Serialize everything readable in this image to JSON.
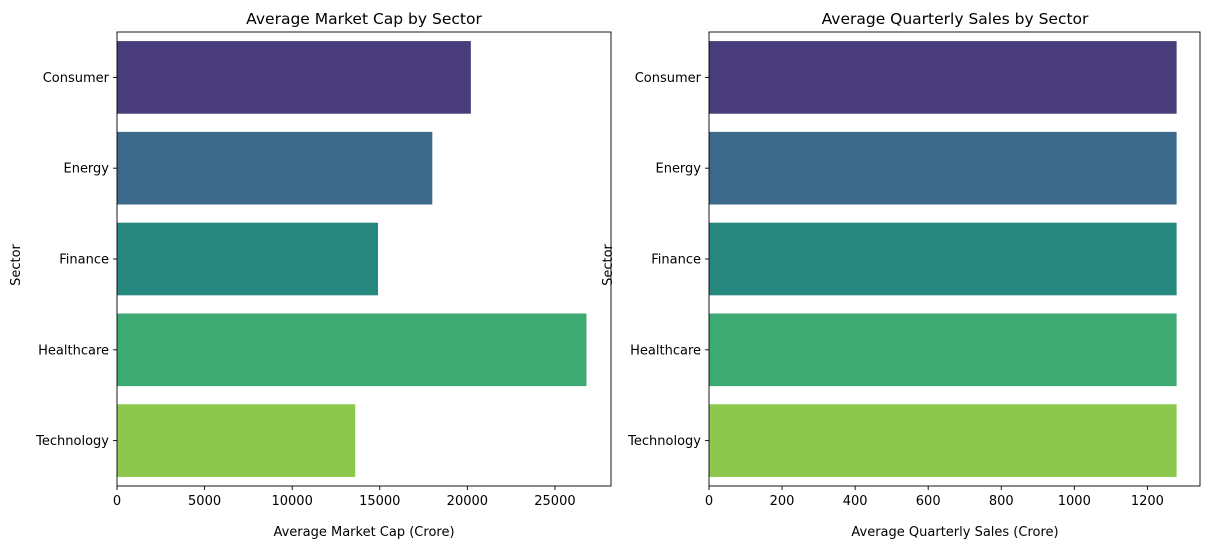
{
  "chart_data": [
    {
      "type": "bar",
      "orientation": "horizontal",
      "title": "Average Market Cap by Sector",
      "xlabel": "Average Market Cap (Crore)",
      "ylabel": "Sector",
      "categories": [
        "Consumer",
        "Energy",
        "Finance",
        "Healthcare",
        "Technology"
      ],
      "values": [
        20200,
        18000,
        14900,
        26800,
        13600
      ],
      "xlim": [
        0,
        28200
      ],
      "xticks": [
        0,
        5000,
        10000,
        15000,
        20000,
        25000
      ],
      "grid": false,
      "colors": [
        "#483d7a",
        "#3b6a8a",
        "#26877f",
        "#3eaa73",
        "#8bc84d"
      ]
    },
    {
      "type": "bar",
      "orientation": "horizontal",
      "title": "Average Quarterly Sales by Sector",
      "xlabel": "Average Quarterly Sales (Crore)",
      "ylabel": "Sector",
      "categories": [
        "Consumer",
        "Energy",
        "Finance",
        "Healthcare",
        "Technology"
      ],
      "values": [
        1280,
        1280,
        1280,
        1280,
        1280
      ],
      "xlim": [
        0,
        1344
      ],
      "xticks": [
        0,
        200,
        400,
        600,
        800,
        1000,
        1200
      ],
      "grid": false,
      "colors": [
        "#483d7a",
        "#3b6a8a",
        "#26877f",
        "#3eaa73",
        "#8bc84d"
      ]
    }
  ]
}
